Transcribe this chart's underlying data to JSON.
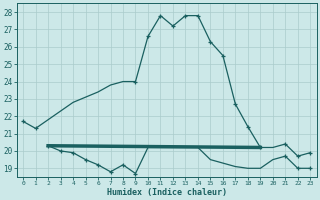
{
  "xlabel": "Humidex (Indice chaleur)",
  "xlim": [
    -0.5,
    23.5
  ],
  "ylim": [
    18.5,
    28.5
  ],
  "yticks": [
    19,
    20,
    21,
    22,
    23,
    24,
    25,
    26,
    27,
    28
  ],
  "xticks": [
    0,
    1,
    2,
    3,
    4,
    5,
    6,
    7,
    8,
    9,
    10,
    11,
    12,
    13,
    14,
    15,
    16,
    17,
    18,
    19,
    20,
    21,
    22,
    23
  ],
  "bg_color": "#cce8e8",
  "grid_color": "#aacccc",
  "line_color": "#1a6060",
  "line1_x": [
    0,
    1,
    2,
    3,
    4,
    5,
    6,
    7,
    8,
    9,
    10,
    11,
    12,
    13,
    14,
    15,
    16,
    17,
    18,
    19,
    20,
    21,
    22,
    23
  ],
  "line1_y": [
    21.7,
    21.3,
    21.8,
    22.3,
    22.8,
    23.1,
    23.4,
    23.8,
    24.0,
    24.0,
    26.6,
    27.8,
    27.2,
    27.8,
    27.8,
    26.3,
    25.5,
    22.7,
    21.4,
    20.2,
    20.2,
    20.4,
    19.7,
    19.9
  ],
  "line1_markers_x": [
    0,
    1,
    9,
    10,
    11,
    12,
    13,
    14,
    15,
    16,
    17,
    18,
    19,
    21,
    22,
    23
  ],
  "line1_markers_y": [
    21.7,
    21.3,
    24.0,
    26.6,
    27.8,
    27.2,
    27.8,
    27.8,
    26.3,
    25.5,
    22.7,
    21.4,
    20.2,
    20.4,
    19.7,
    19.9
  ],
  "line2_x": [
    2,
    3,
    4,
    5,
    6,
    7,
    8,
    9,
    10,
    11,
    12,
    13,
    14,
    15,
    16,
    17,
    18,
    19,
    20,
    21,
    22,
    23
  ],
  "line2_y": [
    20.3,
    20.0,
    19.9,
    19.5,
    19.2,
    18.8,
    19.2,
    18.7,
    20.2,
    20.2,
    20.2,
    20.2,
    20.2,
    19.5,
    19.3,
    19.1,
    19.0,
    19.0,
    19.5,
    19.7,
    19.0,
    19.0
  ],
  "line2_markers_x": [
    2,
    3,
    4,
    5,
    6,
    7,
    8,
    9,
    21,
    22,
    23
  ],
  "line2_markers_y": [
    20.3,
    20.0,
    19.9,
    19.5,
    19.2,
    18.8,
    19.2,
    18.7,
    19.7,
    19.0,
    19.0
  ],
  "line3_x": [
    2,
    19
  ],
  "line3_y": [
    20.3,
    20.2
  ]
}
